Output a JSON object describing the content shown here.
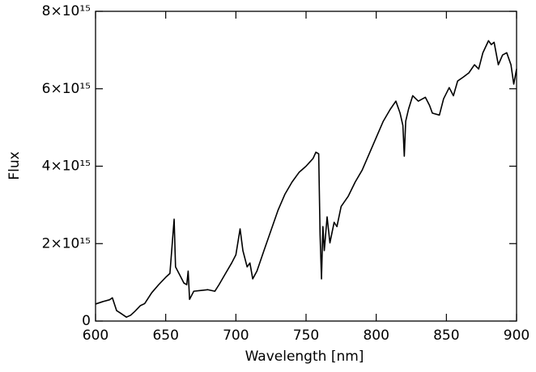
{
  "chart_data": {
    "type": "line",
    "xlabel": "Wavelength [nm]",
    "ylabel": "Flux",
    "xlim": [
      600,
      900
    ],
    "xticks": [
      600,
      650,
      700,
      750,
      800,
      850,
      900
    ],
    "ylim": [
      0,
      8000000000000000.0
    ],
    "yticks": [
      0,
      {
        "value": 2000000000000000.0,
        "label": "2×10¹⁵"
      },
      {
        "value": 4000000000000000.0,
        "label": "4×10¹⁵"
      },
      {
        "value": 6000000000000000.0,
        "label": "6×10¹⁵"
      },
      {
        "value": 8000000000000000.0,
        "label": "8×10¹⁵"
      }
    ],
    "color": "#000000",
    "x": [
      600,
      605,
      610,
      612,
      615,
      618,
      622,
      625,
      628,
      632,
      635,
      640,
      645,
      650,
      653,
      656,
      657,
      660,
      663,
      665,
      666,
      667,
      670,
      675,
      680,
      685,
      688,
      692,
      697,
      700,
      703,
      705,
      708,
      710,
      712,
      715,
      720,
      725,
      730,
      735,
      740,
      745,
      750,
      755,
      757,
      759,
      760,
      761,
      762,
      763,
      765,
      767,
      770,
      772,
      775,
      780,
      785,
      790,
      795,
      800,
      805,
      810,
      814,
      817,
      819,
      820,
      821,
      823,
      826,
      830,
      835,
      838,
      840,
      845,
      848,
      852,
      855,
      858,
      862,
      866,
      870,
      873,
      876,
      880,
      882,
      884,
      887,
      890,
      893,
      896,
      898,
      900
    ],
    "values": [
      440000000000000.0,
      500000000000000.0,
      550000000000000.0,
      600000000000000.0,
      270000000000000.0,
      200000000000000.0,
      100000000000000.0,
      150000000000000.0,
      250000000000000.0,
      400000000000000.0,
      450000000000000.0,
      730000000000000.0,
      940000000000000.0,
      1130000000000000.0,
      1230000000000000.0,
      2630000000000000.0,
      1400000000000000.0,
      1190000000000000.0,
      980000000000000.0,
      940000000000000.0,
      1290000000000000.0,
      560000000000000.0,
      770000000000000.0,
      790000000000000.0,
      810000000000000.0,
      770000000000000.0,
      940000000000000.0,
      1190000000000000.0,
      1500000000000000.0,
      1710000000000000.0,
      2380000000000000.0,
      1820000000000000.0,
      1400000000000000.0,
      1500000000000000.0,
      1090000000000000.0,
      1290000000000000.0,
      1820000000000000.0,
      2340000000000000.0,
      2860000000000000.0,
      3280000000000000.0,
      3590000000000000.0,
      3840000000000000.0,
      4000000000000000.0,
      4200000000000000.0,
      4360000000000000.0,
      4320000000000000.0,
      2230000000000000.0,
      1090000000000000.0,
      2440000000000000.0,
      1820000000000000.0,
      2690000000000000.0,
      2020000000000000.0,
      2550000000000000.0,
      2440000000000000.0,
      2960000000000000.0,
      3220000000000000.0,
      3590000000000000.0,
      3900000000000000.0,
      4320000000000000.0,
      4740000000000000.0,
      5160000000000000.0,
      5470000000000000.0,
      5680000000000000.0,
      5370000000000000.0,
      5050000000000000.0,
      4260000000000000.0,
      5160000000000000.0,
      5470000000000000.0,
      5820000000000000.0,
      5680000000000000.0,
      5780000000000000.0,
      5570000000000000.0,
      5370000000000000.0,
      5320000000000000.0,
      5740000000000000.0,
      6030000000000000.0,
      5820000000000000.0,
      6200000000000000.0,
      6300000000000000.0,
      6410000000000000.0,
      6620000000000000.0,
      6510000000000000.0,
      6930000000000000.0,
      7240000000000000.0,
      7140000000000000.0,
      7200000000000000.0,
      6620000000000000.0,
      6870000000000000.0,
      6930000000000000.0,
      6620000000000000.0,
      6120000000000000.0,
      6510000000000000.0
    ]
  }
}
